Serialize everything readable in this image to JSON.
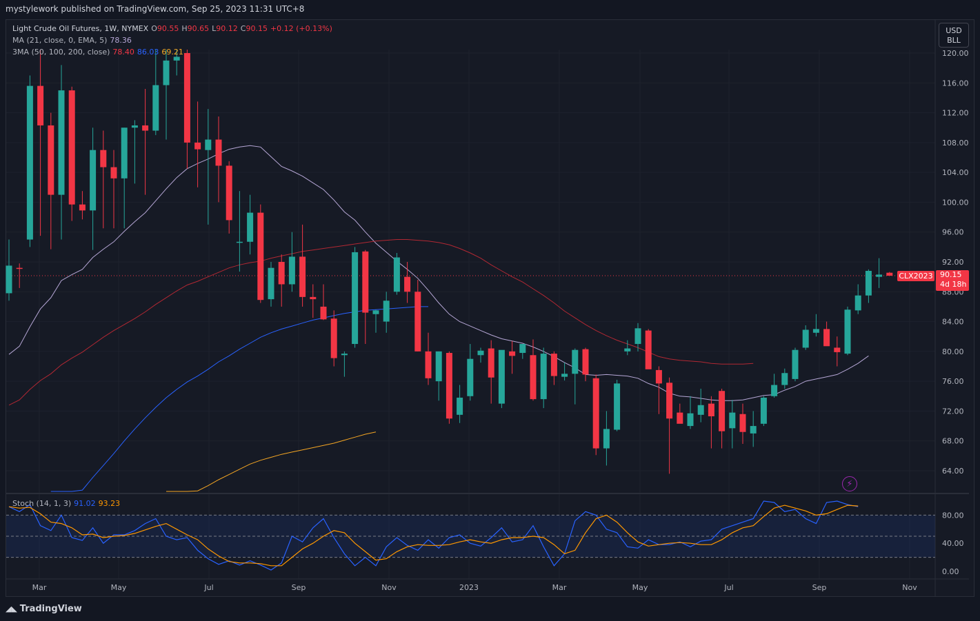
{
  "publish_text": "mystylework published on TradingView.com, Sep 25, 2023 11:31 UTC+8",
  "footer_text": "TradingView",
  "currency": {
    "line1": "USD",
    "line2": "BLL"
  },
  "legend": {
    "main_title": "Light Crude Oil Futures, 1W, NYMEX",
    "o_label": "O",
    "o_value": "90.55",
    "h_label": "H",
    "h_value": "90.65",
    "l_label": "L",
    "l_value": "90.12",
    "c_label": "C",
    "c_value": "90.15",
    "change": "+0.12 (+0.13%)",
    "ma_title": "MA (21, close, 0, EMA, 5)",
    "ma_value": "78.36",
    "tma_title": "3MA (50, 100, 200, close)",
    "tma_v1": "78.40",
    "tma_v2": "86.03",
    "tma_v3": "69.21",
    "stoch_title": "Stoch (14, 1, 3)",
    "stoch_k": "91.02",
    "stoch_d": "93.23"
  },
  "symbol_tag": "CLX2023",
  "last_price": "90.15",
  "countdown": "4d 18h",
  "colors": {
    "up": "#26a69a",
    "down": "#f23645",
    "ma": "#b6a7d6",
    "ma50": "#b22833",
    "ma100": "#2962ff",
    "ma200": "#f5a623",
    "stoch_k": "#2962ff",
    "stoch_d": "#ff9800"
  },
  "chart_data": {
    "type": "candlestick",
    "y_ticks": [
      "120.00",
      "116.00",
      "112.00",
      "108.00",
      "104.00",
      "100.00",
      "96.00",
      "92.00",
      "88.00",
      "84.00",
      "80.00",
      "76.00",
      "72.00",
      "68.00",
      "64.00"
    ],
    "x_ticks": [
      "Mar",
      "May",
      "Jul",
      "Sep",
      "Nov",
      "2023",
      "Mar",
      "May",
      "Jul",
      "Sep",
      "Nov"
    ],
    "stoch_ticks": [
      "80.00",
      "40.00",
      "0.00"
    ],
    "ylim": [
      60.7,
      123.6
    ],
    "candles": [
      [
        87.8,
        95.0,
        86.8,
        91.5
      ],
      [
        91.2,
        91.8,
        88.5,
        91.1
      ],
      [
        95.0,
        117.0,
        94.0,
        115.6
      ],
      [
        115.6,
        124.0,
        95.5,
        110.3
      ],
      [
        110.3,
        112.0,
        93.7,
        101.0
      ],
      [
        101.0,
        118.4,
        95.0,
        115.0
      ],
      [
        115.0,
        115.5,
        97.5,
        99.7
      ],
      [
        99.7,
        101.5,
        97.7,
        98.9
      ],
      [
        98.9,
        110.0,
        93.6,
        107.0
      ],
      [
        107.0,
        109.6,
        96.5,
        104.7
      ],
      [
        104.7,
        107.0,
        96.5,
        103.2
      ],
      [
        103.2,
        110.0,
        96.5,
        110.0
      ],
      [
        110.0,
        111.0,
        102.5,
        110.3
      ],
      [
        110.3,
        115.2,
        101.0,
        109.6
      ],
      [
        109.6,
        121.8,
        109.0,
        115.7
      ],
      [
        115.7,
        120.7,
        108.4,
        119.0
      ],
      [
        119.0,
        123.2,
        117.0,
        119.5
      ],
      [
        120.0,
        121.0,
        104.5,
        108.0
      ],
      [
        108.0,
        113.5,
        102.0,
        107.1
      ],
      [
        107.0,
        112.5,
        97.0,
        108.4
      ],
      [
        108.4,
        111.5,
        100.0,
        104.9
      ],
      [
        104.9,
        105.5,
        95.8,
        97.6
      ],
      [
        94.6,
        101.5,
        90.7,
        94.7
      ],
      [
        94.7,
        101.0,
        93.0,
        98.6
      ],
      [
        98.6,
        99.7,
        86.5,
        86.9
      ],
      [
        87.0,
        92.0,
        86.0,
        91.2
      ],
      [
        92.0,
        93.0,
        86.0,
        89.0
      ],
      [
        89.0,
        96.0,
        88.0,
        92.7
      ],
      [
        92.7,
        97.0,
        86.0,
        87.3
      ],
      [
        87.3,
        89.0,
        84.5,
        87.0
      ],
      [
        86.0,
        89.0,
        84.2,
        84.3
      ],
      [
        84.4,
        85.5,
        78.0,
        79.1
      ],
      [
        79.5,
        80.0,
        76.6,
        79.7
      ],
      [
        81.0,
        94.0,
        80.5,
        93.3
      ],
      [
        93.4,
        93.6,
        81.0,
        85.2
      ],
      [
        85.0,
        85.6,
        82.5,
        85.5
      ],
      [
        84.0,
        88.0,
        82.5,
        86.8
      ],
      [
        88.0,
        93.2,
        87.6,
        92.6
      ],
      [
        90.0,
        92.0,
        86.5,
        88.0
      ],
      [
        88.0,
        89.6,
        80.0,
        80.0
      ],
      [
        80.0,
        82.5,
        75.5,
        76.4
      ],
      [
        76.0,
        80.0,
        73.4,
        80.0
      ],
      [
        79.8,
        80.0,
        70.3,
        71.0
      ],
      [
        71.5,
        75.5,
        70.4,
        73.8
      ],
      [
        74.0,
        81.0,
        73.4,
        79.0
      ],
      [
        79.5,
        80.5,
        78.5,
        80.1
      ],
      [
        80.4,
        81.5,
        73.0,
        76.5
      ],
      [
        73.0,
        80.0,
        72.4,
        80.2
      ],
      [
        80.0,
        81.4,
        77.0,
        79.4
      ],
      [
        79.8,
        81.0,
        79.0,
        81.0
      ],
      [
        79.5,
        81.6,
        73.4,
        73.6
      ],
      [
        73.6,
        80.5,
        72.4,
        79.7
      ],
      [
        79.7,
        80.0,
        75.5,
        76.7
      ],
      [
        76.6,
        78.5,
        76.1,
        77.0
      ],
      [
        77.0,
        80.4,
        72.9,
        80.2
      ],
      [
        80.3,
        80.5,
        76.0,
        76.9
      ],
      [
        76.4,
        76.9,
        66.1,
        67.0
      ],
      [
        67.0,
        72.0,
        64.7,
        69.6
      ],
      [
        69.5,
        76.2,
        69.3,
        75.7
      ],
      [
        80.0,
        81.5,
        79.5,
        80.4
      ],
      [
        81.0,
        83.8,
        80.0,
        83.1
      ],
      [
        82.8,
        83.0,
        78.0,
        77.6
      ],
      [
        77.5,
        78.0,
        71.6,
        75.7
      ],
      [
        75.8,
        76.5,
        63.6,
        71.0
      ],
      [
        71.8,
        73.0,
        70.7,
        70.3
      ],
      [
        70.0,
        74.0,
        69.6,
        71.7
      ],
      [
        71.5,
        75.0,
        70.5,
        72.8
      ],
      [
        73.0,
        74.0,
        67.0,
        71.3
      ],
      [
        74.7,
        75.0,
        67.0,
        69.3
      ],
      [
        69.7,
        73.5,
        67.0,
        71.8
      ],
      [
        71.6,
        73.0,
        67.6,
        69.2
      ],
      [
        69.0,
        72.0,
        67.2,
        70.0
      ],
      [
        70.3,
        74.0,
        70.0,
        73.8
      ],
      [
        74.0,
        77.0,
        73.8,
        75.5
      ],
      [
        75.5,
        77.7,
        75.0,
        77.1
      ],
      [
        76.3,
        80.5,
        76.0,
        80.2
      ],
      [
        80.5,
        83.5,
        80.2,
        82.9
      ],
      [
        82.5,
        85.0,
        82.0,
        83.0
      ],
      [
        83.0,
        84.0,
        81.0,
        80.7
      ],
      [
        80.5,
        82.0,
        78.0,
        79.9
      ],
      [
        79.7,
        86.0,
        79.5,
        85.6
      ],
      [
        85.5,
        89.0,
        85.0,
        87.5
      ],
      [
        87.5,
        91.0,
        86.5,
        90.8
      ],
      [
        90.0,
        92.5,
        88.5,
        90.3
      ],
      [
        90.55,
        90.65,
        90.12,
        90.15
      ]
    ],
    "ma21_ema": [
      79.6,
      80.7,
      83.3,
      85.7,
      87.2,
      89.5,
      90.3,
      91.0,
      92.6,
      93.7,
      94.7,
      96.1,
      97.4,
      98.6,
      100.2,
      101.8,
      103.3,
      104.5,
      105.2,
      105.8,
      106.5,
      107.1,
      107.4,
      107.6,
      107.4,
      106.1,
      104.8,
      104.2,
      103.5,
      102.6,
      101.7,
      100.3,
      98.7,
      97.6,
      96.0,
      94.5,
      93.3,
      92.1,
      91.0,
      89.8,
      88.2,
      86.5,
      85.0,
      84.0,
      83.4,
      82.8,
      82.2,
      81.7,
      81.4,
      81.1,
      80.6,
      80.0,
      79.3,
      78.5,
      77.8,
      76.9,
      76.8,
      76.9,
      76.8,
      76.7,
      76.4,
      75.7,
      75.2,
      74.4,
      74.0,
      73.9,
      73.7,
      73.5,
      73.4,
      73.4,
      73.5,
      73.8,
      74.1,
      74.2,
      74.8,
      75.3,
      76.0,
      76.3,
      76.6,
      76.9,
      77.6,
      78.4,
      79.4
    ],
    "ma50": [
      72.8,
      73.5,
      74.9,
      76.1,
      77.0,
      78.2,
      79.1,
      79.9,
      80.9,
      81.9,
      82.8,
      83.6,
      84.4,
      85.3,
      86.3,
      87.2,
      88.1,
      88.9,
      89.4,
      90.0,
      90.6,
      91.2,
      91.6,
      91.9,
      92.1,
      92.5,
      92.8,
      93.1,
      93.4,
      93.6,
      93.8,
      94.0,
      94.2,
      94.4,
      94.6,
      94.8,
      94.9,
      95.0,
      95.0,
      94.9,
      94.8,
      94.6,
      94.3,
      93.8,
      93.2,
      92.5,
      91.6,
      90.8,
      90.0,
      89.3,
      88.4,
      87.5,
      86.5,
      85.4,
      84.5,
      83.6,
      82.8,
      82.1,
      81.5,
      81.0,
      80.5,
      79.9,
      79.3,
      79.0,
      78.8,
      78.7,
      78.6,
      78.4,
      78.3,
      78.3,
      78.3,
      78.4
    ],
    "ma100": [
      56.8,
      58.3,
      59.9,
      61.4,
      63.1,
      64.7,
      66.3,
      68.0,
      69.6,
      71.1,
      72.5,
      73.8,
      74.9,
      75.9,
      76.7,
      77.6,
      78.6,
      79.4,
      80.3,
      81.1,
      81.9,
      82.5,
      83.0,
      83.4,
      83.8,
      84.2,
      84.5,
      84.8,
      85.1,
      85.3,
      85.5,
      85.6,
      85.7,
      85.8,
      85.9,
      86.0,
      86.0
    ],
    "ma200": [
      59.0,
      59.8,
      60.5,
      61.3,
      62.0,
      62.8,
      63.5,
      64.2,
      64.9,
      65.4,
      65.8,
      66.2,
      66.5,
      66.8,
      67.1,
      67.4,
      67.7,
      68.1,
      68.5,
      68.9,
      69.2
    ],
    "stoch_k": [
      92,
      85,
      95,
      65,
      58,
      80,
      48,
      44,
      62,
      40,
      52,
      52,
      58,
      68,
      75,
      50,
      45,
      48,
      30,
      18,
      10,
      15,
      9,
      15,
      9,
      2,
      12,
      50,
      42,
      62,
      75,
      48,
      25,
      8,
      20,
      8,
      35,
      48,
      37,
      30,
      45,
      33,
      48,
      52,
      40,
      36,
      48,
      62,
      42,
      45,
      65,
      35,
      8,
      25,
      72,
      85,
      80,
      60,
      55,
      35,
      33,
      45,
      38,
      38,
      42,
      35,
      43,
      45,
      60,
      65,
      70,
      75,
      100,
      98,
      85,
      88,
      75,
      68,
      98,
      100,
      95,
      92
    ],
    "stoch_d": [
      92,
      90,
      91,
      82,
      70,
      68,
      62,
      52,
      53,
      48,
      50,
      51,
      54,
      59,
      64,
      68,
      60,
      52,
      45,
      32,
      22,
      14,
      12,
      12,
      11,
      8,
      8,
      20,
      32,
      40,
      50,
      58,
      55,
      40,
      28,
      16,
      18,
      28,
      35,
      38,
      37,
      37,
      38,
      42,
      45,
      42,
      40,
      45,
      48,
      48,
      50,
      48,
      38,
      25,
      30,
      55,
      75,
      80,
      70,
      55,
      42,
      36,
      38,
      40,
      41,
      40,
      38,
      38,
      45,
      55,
      62,
      65,
      78,
      90,
      94,
      90,
      86,
      80,
      82,
      88,
      94,
      93
    ]
  }
}
